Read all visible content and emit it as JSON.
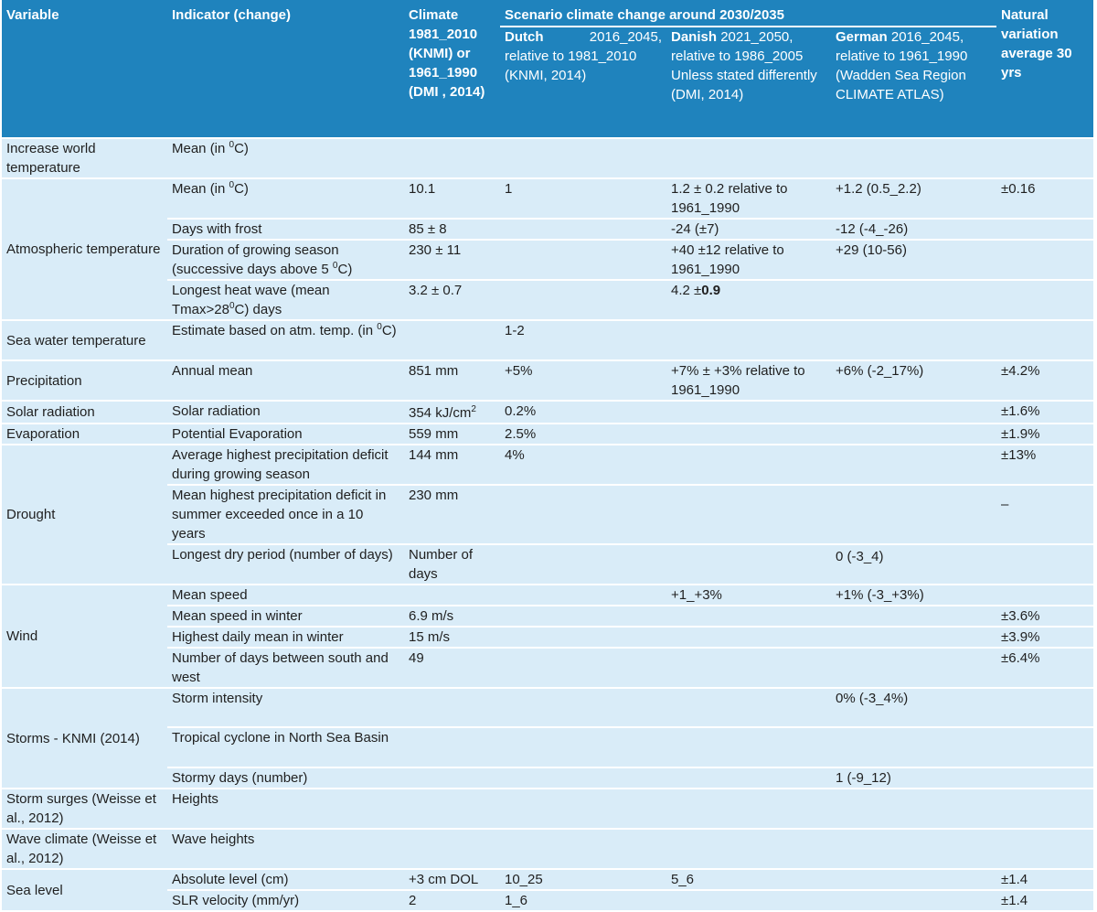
{
  "header": {
    "variable": "Variable",
    "indicator": "Indicator (change)",
    "climate": "Climate 1981_2010 (KNMI) or 1961_1990 (DMI , 2014)",
    "scenario": "Scenario climate change around 2030/2035",
    "natural": "Natural variation average 30 yrs",
    "dutch_bold": "Dutch",
    "dutch_years": "2016_2045,",
    "dutch_rest": "relative to 1981_2010 (KNMI, 2014)",
    "danish_bold": "Danish",
    "danish_rest": "2021_2050, relative to 1986_2005 Unless stated differently (DMI, 2014)",
    "german_bold": "German",
    "german_rest": "2016_2045, relative to 1961_1990 (Wadden Sea Region CLIMATE ATLAS)"
  },
  "rows": {
    "world": {
      "variable": "Increase world temperature",
      "ind": "Mean (in ",
      "sup": "0",
      "ind_end": "C)"
    },
    "atm": {
      "variable": "Atmospheric temperature",
      "r1": {
        "ind": "Mean (in ",
        "sup": "0",
        "ind_end": "C)",
        "climate": "10.1",
        "dutch": "1",
        "danish": "1.2 ± 0.2 relative to 1961_1990",
        "german": "+1.2 (0.5_2.2)",
        "natural": "±0.16"
      },
      "r2": {
        "ind": "Days with frost",
        "climate": "85 ± 8",
        "danish": "-24 (±7)",
        "german": "-12 (-4_-26)"
      },
      "r3": {
        "ind": "Duration of growing season (successive days above 5 ",
        "sup": "0",
        "ind_end": "C)",
        "climate": "230 ± 11",
        "danish": "+40 ±12 relative to 1961_1990",
        "german": "+29 (10-56)"
      },
      "r4": {
        "ind": "Longest heat wave (mean Tmax>28",
        "sup": "0",
        "ind_end": "C) days",
        "climate": "3.2 ± 0.7",
        "danish_a": "4.2 ±",
        "danish_b": "0.9"
      }
    },
    "sea_water": {
      "variable": "Sea water temperature",
      "ind": "Estimate based on atm. temp. (in ",
      "sup": "0",
      "ind_end": "C)",
      "dutch": "1-2"
    },
    "precip": {
      "variable": "Precipitation",
      "ind": "Annual mean",
      "climate": "851 mm",
      "dutch": "+5%",
      "danish": "+7% ± +3% relative to 1961_1990",
      "german": "+6% (-2_17%)",
      "natural": "±4.2%"
    },
    "solar": {
      "variable": "Solar radiation",
      "ind": "Solar radiation",
      "climate": "354 kJ/cm",
      "sup": "2",
      "dutch": "0.2%",
      "natural": "±1.6%"
    },
    "evap": {
      "variable": "Evaporation",
      "ind": "Potential Evaporation",
      "climate": "559 mm",
      "dutch": "2.5%",
      "natural": "±1.9%"
    },
    "drought": {
      "variable": "Drought",
      "r1": {
        "ind": "Average highest precipitation deficit during growing season",
        "climate": "144 mm",
        "dutch": "4%",
        "natural": "±13%"
      },
      "r2": {
        "ind": "Mean highest precipitation deficit in summer exceeded once in a 10 years",
        "climate": "230 mm",
        "natural": "–"
      },
      "r3": {
        "ind": "Longest dry period (number of days)",
        "climate": "Number of days",
        "german": "0 (-3_4)"
      }
    },
    "wind": {
      "variable": "Wind",
      "r1": {
        "ind": "Mean speed",
        "danish": "+1_+3%",
        "german": "+1% (-3_+3%)"
      },
      "r2": {
        "ind": "Mean speed in winter",
        "climate": "6.9 m/s",
        "natural": "±3.6%"
      },
      "r3": {
        "ind": "Highest daily mean in winter",
        "climate": "15 m/s",
        "natural": "±3.9%"
      },
      "r4": {
        "ind": "Number of days between south and west",
        "climate": "49",
        "natural": "±6.4%"
      }
    },
    "storms": {
      "variable": "Storms - KNMI (2014)",
      "r1": {
        "ind": "Storm intensity",
        "german": "0% (-3_4%)"
      },
      "r2": {
        "ind": "Tropical cyclone in North Sea Basin"
      },
      "r3": {
        "ind": "Stormy days (number)",
        "german": "1 (-9_12)"
      }
    },
    "surges": {
      "variable": "Storm surges (Weisse et al., 2012)",
      "ind": "Heights"
    },
    "wave": {
      "variable": "Wave climate (Weisse et al., 2012)",
      "ind": "Wave heights"
    },
    "sea_level": {
      "variable": "Sea level",
      "r1": {
        "ind": "Absolute level (cm)",
        "climate": "+3 cm DOL",
        "dutch": "10_25",
        "danish": "5_6",
        "natural": "±1.4"
      },
      "r2": {
        "ind": "SLR velocity (mm/yr)",
        "climate": "2",
        "dutch": "1_6",
        "natural": "±1.4"
      }
    }
  }
}
